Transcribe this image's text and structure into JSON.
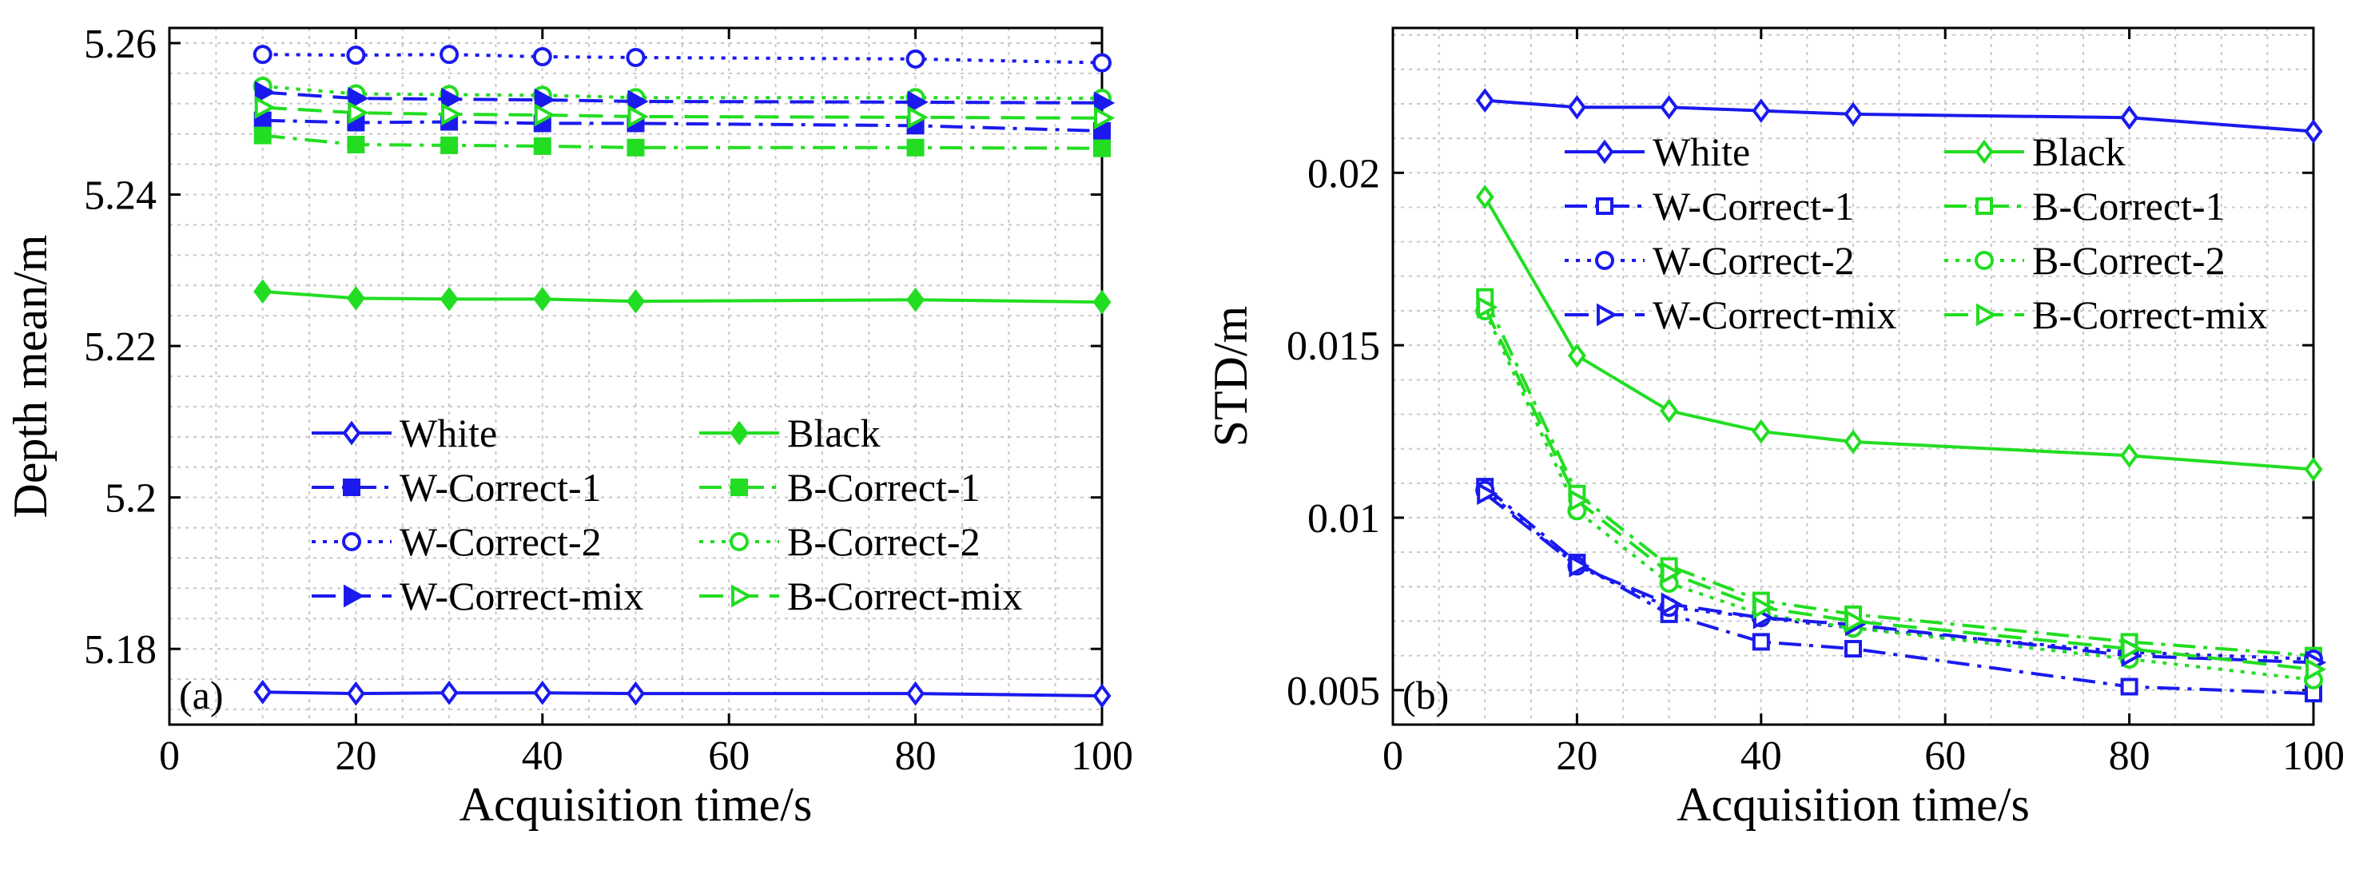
{
  "figure_title": "",
  "colors": {
    "blue": "#1a1aee",
    "green": "#22dd22",
    "grid": "#c8c8c8",
    "axis": "#000000"
  },
  "chart_data": [
    {
      "type": "line",
      "panel_label": "(a)",
      "title": "",
      "xlabel": "Acquisition time/s",
      "ylabel": "Depth mean/m",
      "xlim": [
        0,
        100
      ],
      "ylim": [
        5.17,
        5.262
      ],
      "xticks": [
        0,
        20,
        40,
        60,
        80,
        100
      ],
      "xtick_labels": [
        "0",
        "20",
        "40",
        "60",
        "80",
        "100"
      ],
      "yticks": [
        5.18,
        5.2,
        5.22,
        5.24,
        5.26
      ],
      "ytick_labels": [
        "5.18",
        "5.2",
        "5.22",
        "5.24",
        "5.26"
      ],
      "x_minor_step": 5,
      "y_minor_step": 0.004,
      "grid": true,
      "legend_position": "lower-center",
      "x": [
        10,
        20,
        30,
        40,
        50,
        80,
        100
      ],
      "series": [
        {
          "name": "White",
          "color": "blue",
          "dash": "solid",
          "marker": "diamond",
          "values": [
            5.1743,
            5.1741,
            5.1742,
            5.1742,
            5.1741,
            5.1741,
            5.1738
          ]
        },
        {
          "name": "Black",
          "color": "green",
          "dash": "solid",
          "marker": "diamond-filled",
          "values": [
            5.2272,
            5.2263,
            5.2262,
            5.2262,
            5.2259,
            5.2261,
            5.2258
          ]
        },
        {
          "name": "W-Correct-1",
          "color": "blue",
          "dash": "dashdot",
          "marker": "square-filled",
          "values": [
            5.2498,
            5.2495,
            5.2496,
            5.2494,
            5.2494,
            5.2491,
            5.2484
          ]
        },
        {
          "name": "B-Correct-1",
          "color": "green",
          "dash": "dashdot",
          "marker": "square-filled",
          "values": [
            5.2478,
            5.2466,
            5.2465,
            5.2464,
            5.2462,
            5.2462,
            5.2461
          ]
        },
        {
          "name": "W-Correct-2",
          "color": "blue",
          "dash": "dotted",
          "marker": "circle",
          "values": [
            5.2585,
            5.2584,
            5.2585,
            5.2582,
            5.2581,
            5.2579,
            5.2574
          ]
        },
        {
          "name": "B-Correct-2",
          "color": "green",
          "dash": "dotted",
          "marker": "circle",
          "values": [
            5.2543,
            5.2533,
            5.2532,
            5.2531,
            5.2528,
            5.2528,
            5.2527
          ]
        },
        {
          "name": "W-Correct-mix",
          "color": "blue",
          "dash": "dashed",
          "marker": "triangle-right-filled",
          "values": [
            5.2535,
            5.2527,
            5.2526,
            5.2525,
            5.2523,
            5.2522,
            5.2521
          ]
        },
        {
          "name": "B-Correct-mix",
          "color": "green",
          "dash": "dashed",
          "marker": "triangle-right",
          "values": [
            5.2515,
            5.2508,
            5.2506,
            5.2505,
            5.2503,
            5.2502,
            5.2501
          ]
        }
      ]
    },
    {
      "type": "line",
      "panel_label": "(b)",
      "title": "",
      "xlabel": "Acquisition time/s",
      "ylabel": "STD/m",
      "xlim": [
        0,
        100
      ],
      "ylim": [
        0.004,
        0.0242
      ],
      "xticks": [
        0,
        20,
        40,
        60,
        80,
        100
      ],
      "xtick_labels": [
        "0",
        "20",
        "40",
        "60",
        "80",
        "100"
      ],
      "yticks": [
        0.005,
        0.01,
        0.015,
        0.02
      ],
      "ytick_labels": [
        "0.005",
        "0.01",
        "0.015",
        "0.02"
      ],
      "x_minor_step": 5,
      "y_minor_step": 0.001,
      "grid": true,
      "legend_position": "top-right",
      "x": [
        10,
        20,
        30,
        40,
        50,
        80,
        100
      ],
      "series": [
        {
          "name": "White",
          "color": "blue",
          "dash": "solid",
          "marker": "diamond",
          "values": [
            0.0221,
            0.0219,
            0.0219,
            0.0218,
            0.0217,
            0.0216,
            0.0212
          ]
        },
        {
          "name": "Black",
          "color": "green",
          "dash": "solid",
          "marker": "diamond",
          "values": [
            0.0193,
            0.0147,
            0.0131,
            0.0125,
            0.0122,
            0.0118,
            0.0114
          ]
        },
        {
          "name": "W-Correct-1",
          "color": "blue",
          "dash": "dashdot",
          "marker": "square",
          "values": [
            0.0109,
            0.0087,
            0.0072,
            0.0064,
            0.0062,
            0.0051,
            0.0049
          ]
        },
        {
          "name": "B-Correct-1",
          "color": "green",
          "dash": "dashdot",
          "marker": "square",
          "values": [
            0.0164,
            0.0107,
            0.0086,
            0.0076,
            0.0072,
            0.0064,
            0.006
          ]
        },
        {
          "name": "W-Correct-2",
          "color": "blue",
          "dash": "dotted",
          "marker": "circle",
          "values": [
            0.0108,
            0.0086,
            0.0074,
            0.0071,
            0.0068,
            0.0061,
            0.0059
          ]
        },
        {
          "name": "B-Correct-2",
          "color": "green",
          "dash": "dotted",
          "marker": "circle",
          "values": [
            0.016,
            0.0102,
            0.0081,
            0.0072,
            0.0068,
            0.0059,
            0.0053
          ]
        },
        {
          "name": "W-Correct-mix",
          "color": "blue",
          "dash": "dashed",
          "marker": "triangle-right",
          "values": [
            0.0107,
            0.0086,
            0.0075,
            0.0071,
            0.0069,
            0.006,
            0.0058
          ]
        },
        {
          "name": "B-Correct-mix",
          "color": "green",
          "dash": "dashed",
          "marker": "triangle-right",
          "values": [
            0.0161,
            0.0105,
            0.0084,
            0.0074,
            0.007,
            0.0062,
            0.0056
          ]
        }
      ]
    }
  ]
}
